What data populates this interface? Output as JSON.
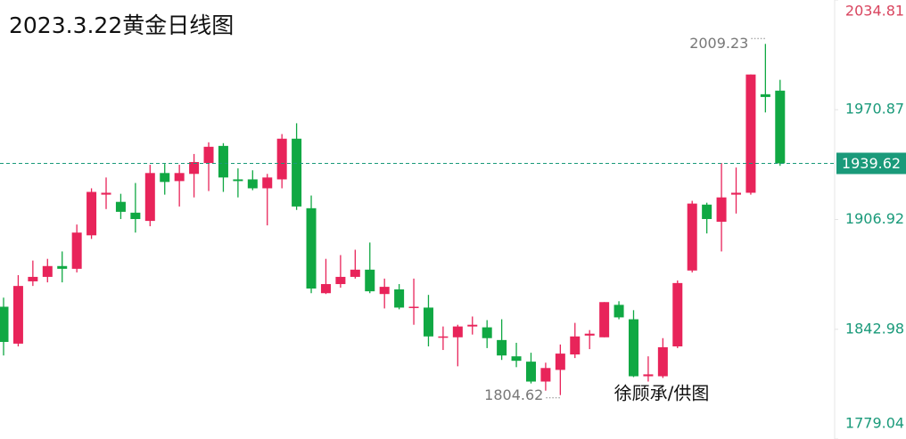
{
  "chart_data": {
    "type": "candlestick",
    "title": "2023.3.22黄金日线图",
    "credit": "徐顾承/供图",
    "ylim": [
      1779.04,
      2034.81
    ],
    "yticks": [
      2034.81,
      1970.87,
      1906.92,
      1842.98,
      1779.04
    ],
    "up_color": "#e8245a",
    "down_color": "#10a843",
    "tick_color": "#1a9a7a",
    "top_tick_color": "#d9455f",
    "price_line_color": "#1a9a7a",
    "open": [
      1856.1,
      1834.6,
      1870.9,
      1873.5,
      1879.8,
      1878.2,
      1897.7,
      1921.4,
      1917.2,
      1910.9,
      1906.1,
      1934.0,
      1929.3,
      1933.5,
      1939.8,
      1949.8,
      1930.3,
      1930.3,
      1925.1,
      1930.3,
      1954.0,
      1913.5,
      1864.0,
      1869.3,
      1873.5,
      1877.7,
      1863.5,
      1866.2,
      1855.6,
      1855.6,
      1838.3,
      1838.3,
      1844.6,
      1844.1,
      1836.7,
      1827.2,
      1824.1,
      1812.5,
      1819.3,
      1828.3,
      1839.3,
      1838.3,
      1857.2,
      1848.8,
      1815.6,
      1815.6,
      1833.0,
      1877.2,
      1915.6,
      1905.6,
      1921.4,
      1922.5,
      1979.9,
      1982.0
    ],
    "high": [
      1861.4,
      1874.5,
      1883.0,
      1884.0,
      1888.3,
      1904.0,
      1925.1,
      1931.4,
      1921.9,
      1928.2,
      1938.8,
      1939.3,
      1938.8,
      1945.1,
      1951.9,
      1951.4,
      1936.7,
      1935.6,
      1933.5,
      1956.7,
      1963.0,
      1920.9,
      1884.0,
      1886.2,
      1889.3,
      1893.5,
      1872.5,
      1869.3,
      1872.5,
      1863.0,
      1844.6,
      1845.6,
      1850.4,
      1848.3,
      1848.8,
      1835.1,
      1829.3,
      1823.5,
      1834.1,
      1846.7,
      1842.5,
      1858.8,
      1859.3,
      1854.1,
      1827.2,
      1837.8,
      1871.4,
      1917.8,
      1916.7,
      1939.8,
      1937.2,
      1991.4,
      2009.23,
      1988.3
    ],
    "low": [
      1827.7,
      1833.0,
      1868.2,
      1870.3,
      1870.3,
      1876.1,
      1895.6,
      1913.0,
      1907.2,
      1899.3,
      1903.0,
      1921.4,
      1914.5,
      1919.8,
      1923.5,
      1923.0,
      1919.8,
      1924.0,
      1903.5,
      1925.1,
      1912.5,
      1864.0,
      1863.5,
      1867.2,
      1872.5,
      1864.0,
      1855.1,
      1854.6,
      1845.6,
      1833.0,
      1830.9,
      1821.4,
      1839.9,
      1832.0,
      1825.1,
      1820.9,
      1811.4,
      1807.2,
      1804.62,
      1826.2,
      1831.4,
      1838.3,
      1848.8,
      1815.1,
      1812.5,
      1814.6,
      1832.0,
      1876.1,
      1898.8,
      1888.3,
      1910.4,
      1921.4,
      1969.3,
      1938.2
    ],
    "close": [
      1835.6,
      1868.2,
      1873.5,
      1879.8,
      1878.2,
      1899.3,
      1923.0,
      1922.5,
      1911.4,
      1907.2,
      1934.0,
      1928.8,
      1934.0,
      1940.4,
      1949.3,
      1931.4,
      1929.3,
      1925.1,
      1931.4,
      1954.0,
      1914.5,
      1866.7,
      1869.3,
      1873.5,
      1877.7,
      1865.1,
      1867.7,
      1855.6,
      1856.1,
      1838.8,
      1838.8,
      1844.6,
      1845.6,
      1837.8,
      1827.7,
      1824.6,
      1812.5,
      1820.4,
      1828.8,
      1838.8,
      1840.4,
      1858.8,
      1849.9,
      1815.6,
      1816.7,
      1832.5,
      1869.9,
      1916.2,
      1907.2,
      1919.8,
      1922.5,
      1991.4,
      1978.3,
      1939.62
    ]
  }
}
